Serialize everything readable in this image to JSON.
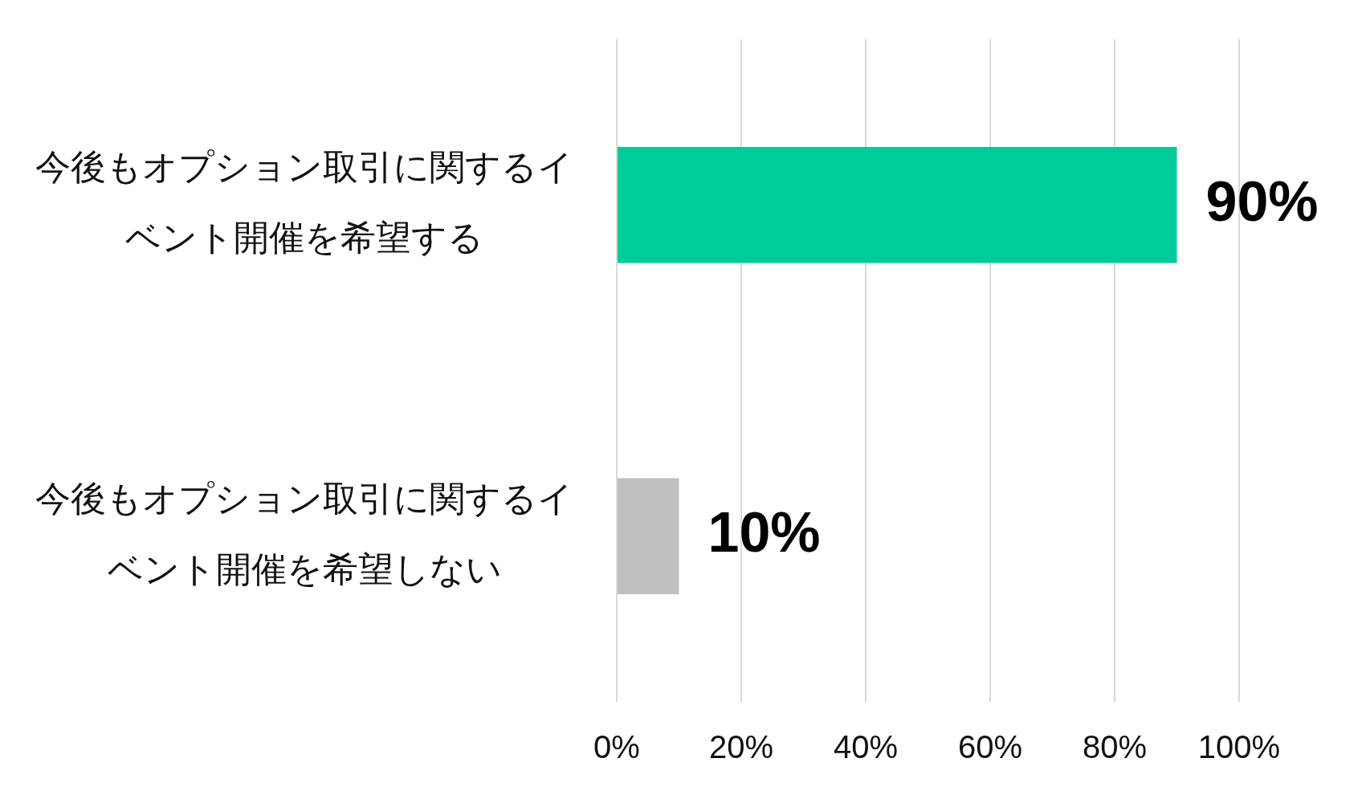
{
  "chart_data": {
    "type": "bar",
    "orientation": "horizontal",
    "categories": [
      "今後もオプション取引に関するイベント開催を希望する",
      "今後もオプション取引に関するイベント開催を希望しない"
    ],
    "values": [
      90,
      10
    ],
    "colors": [
      "#00cc99",
      "#bfbfbf"
    ],
    "value_labels": [
      "90%",
      "10%"
    ],
    "xlim": [
      0,
      100
    ],
    "xticks": [
      {
        "value": 0,
        "label": "0%"
      },
      {
        "value": 20,
        "label": "20%"
      },
      {
        "value": 40,
        "label": "40%"
      },
      {
        "value": 60,
        "label": "60%"
      },
      {
        "value": 80,
        "label": "80%"
      },
      {
        "value": 100,
        "label": "100%"
      }
    ],
    "grid": "x"
  }
}
